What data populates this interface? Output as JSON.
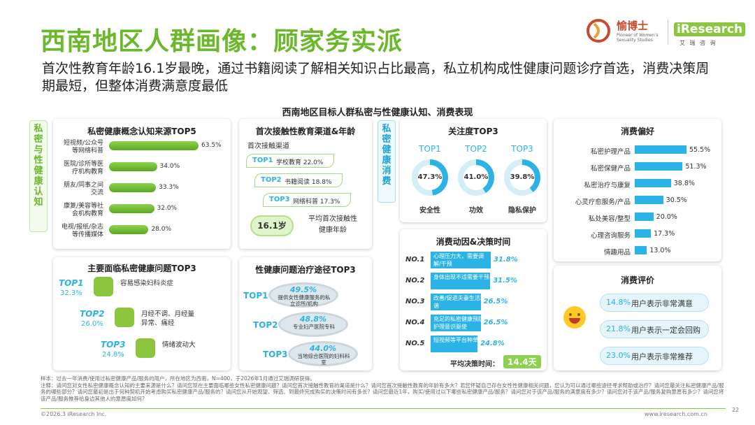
{
  "header": {
    "title": "西南地区人群画像：顾家务实派",
    "subtitle": "首次性教育年龄16.1岁最晚，通过书籍阅读了解相关知识占比最高，私立机构成性健康问题诊疗首选，消费决策周期最短，但整体消费满意度最低",
    "logo_brand": "愉博士",
    "logo_tagline": "Pioneer of Women's Sexuality Studies",
    "logo_ir": "iResearch",
    "logo_ir_sub": "艾 瑞 咨 询"
  },
  "main_title": "西南地区目标人群私密与性健康认知、消费表现",
  "side_labels": {
    "left": "私密与性健康认知",
    "right": "私密健康消费"
  },
  "awareness": {
    "title": "私密健康概念认知来源TOP5",
    "items": [
      {
        "label": "短视频/公众号等网络科普",
        "value": 63.5,
        "display": "63.5%"
      },
      {
        "label": "医院/诊所等医疗机构教育",
        "value": 34.0,
        "display": "34.0%"
      },
      {
        "label": "朋友/同事之间交流",
        "value": 33.3,
        "display": "33.3%"
      },
      {
        "label": "康复/美容等社会机构教育",
        "value": 32.0,
        "display": "32.0%"
      },
      {
        "label": "电视/报纸/杂志等传播媒体",
        "value": 28.0,
        "display": "28.0%"
      }
    ]
  },
  "first_edu": {
    "title": "首次接触性教育渠道&年龄",
    "sub": "首次接触渠道",
    "items": [
      {
        "rank": "TOP1",
        "text": "学校教育 22.0%"
      },
      {
        "rank": "TOP2",
        "text": "书籍阅读 18.8%"
      },
      {
        "rank": "TOP3",
        "text": "网络科普 17.3%"
      }
    ],
    "age": "16.1岁",
    "age_label": "平均首次接触性健康年龄"
  },
  "attention": {
    "title": "关注度TOP3",
    "items": [
      {
        "rank": "TOP1",
        "value": 47.3,
        "display": "47.3%",
        "label": "安全性"
      },
      {
        "rank": "TOP2",
        "value": 41.0,
        "display": "41.0%",
        "label": "功效"
      },
      {
        "rank": "TOP3",
        "value": 39.8,
        "display": "39.8%",
        "label": "隐私保护"
      }
    ]
  },
  "preference": {
    "title": "消费偏好",
    "items": [
      {
        "label": "私密护理产品",
        "value": 55.5,
        "display": "55.5%"
      },
      {
        "label": "私密保健产品",
        "value": 51.3,
        "display": "51.3%"
      },
      {
        "label": "私密治疗与康复",
        "value": 38.8,
        "display": "38.8%"
      },
      {
        "label": "心灵疗愈服务/产品",
        "value": 30.5,
        "display": "30.5%"
      },
      {
        "label": "私处美容/整型",
        "value": 20.0,
        "display": "20.0%"
      },
      {
        "label": "心理咨询服务",
        "value": 17.3,
        "display": "17.3%"
      },
      {
        "label": "情趣用品",
        "value": 13.0,
        "display": "13.0%"
      }
    ]
  },
  "problems": {
    "title": "主要面临私密健康问题TOP3",
    "items": [
      {
        "rank": "TOP1",
        "pct": "32.3%",
        "text": "容易感染妇科炎症"
      },
      {
        "rank": "TOP2",
        "pct": "26.0%",
        "text": "月经不调、月经量异常、痛经"
      },
      {
        "rank": "TOP3",
        "pct": "24.8%",
        "text": "情绪波动大"
      }
    ]
  },
  "treatment": {
    "title": "性健康问题治疗途径TOP3",
    "items": [
      {
        "rank": "TOP1",
        "pct": "49.5%",
        "text": "提供女性健康服务的私立诊所/机构"
      },
      {
        "rank": "TOP2",
        "pct": "48.8%",
        "text": "专业妇产医院专科"
      },
      {
        "rank": "TOP3",
        "pct": "44.0%",
        "text": "当地综合医院的妇科科室"
      }
    ]
  },
  "motivation": {
    "title": "消费动因&决策时间",
    "items": [
      {
        "rank": "NO.1",
        "text": "心理压力大，需要调解/干预",
        "value": 31.8,
        "display": "31.8%"
      },
      {
        "rank": "NO.2",
        "text": "身体出现不适需要干预",
        "value": 31.5,
        "display": "31.5%"
      },
      {
        "rank": "NO.3",
        "text": "改善/促进夫妻生活和谐",
        "value": 26.5,
        "display": "26.5%"
      },
      {
        "rank": "NO.4",
        "text": "充足的私密健康预防和护理意识驱使",
        "value": 26.5,
        "display": "26.5%"
      },
      {
        "rank": "NO.5",
        "text": "短视频等平台种草",
        "value": 24.8,
        "display": "24.8%"
      }
    ],
    "avg_label": "平均决策时间：",
    "avg_value": "14.4天"
  },
  "evaluation": {
    "title": "消费评价",
    "items": [
      {
        "pct": "14.8%",
        "text": "用户表示非常满意"
      },
      {
        "pct": "21.8%",
        "text": "用户表示一定会回购"
      },
      {
        "pct": "23.0%",
        "text": "用户表示非常推荐"
      }
    ]
  },
  "footer": {
    "note1": "样本：过去一年消费/使用过私密健康产品/服务的用户，所在地区为西南，N=400，于2026年1月通过艾瑞调研获得。",
    "note2": "注释：请问您对女性私密健康概念认知的主要来源是什么？请问您现在主要面临哪些女性私密健康问题？请问您首次接触性教育的渠道是什么？请问您首次接触性教育的年龄有多大？若您怀疑自己存在女性性健康相关问题，您认为可以通过哪些途径寻求帮助或治疗？请问您最关注私密健康产品/服务的哪些部分？请问您最初是出于何种契机开始考虑购买私密健康产品/服务的？请问您从开始观望、筛选、到最终完成购买的决策时间有多长？请问您最近1年，购买/使用过以下哪些私密健康产品/服务？请问您对于该产品/服务的满意度有多少？请问您对于该产品/服务复购意愿有多少？请问您将该产品/服务推荐给身边其他人的意愿度如何？",
    "copyright": "©2026.3 iResearch Inc.",
    "url": "www.iresearch.com.cn",
    "page": "22"
  },
  "colors": {
    "green": "#6cb82c",
    "blue": "#2bb3e6",
    "light_blue": "#d4eef8"
  }
}
